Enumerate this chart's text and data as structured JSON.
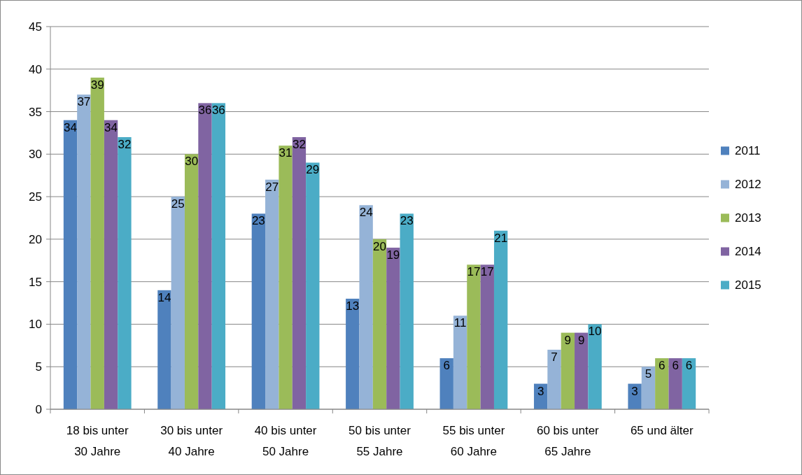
{
  "chart_data": {
    "type": "bar",
    "categories": [
      "18 bis unter 30 Jahre",
      "30 bis unter 40 Jahre",
      "40 bis unter 50 Jahre",
      "50 bis unter 55 Jahre",
      "55 bis unter 60 Jahre",
      "60 bis unter 65 Jahre",
      "65 und älter"
    ],
    "series": [
      {
        "name": "2011",
        "color": "#4f81bd",
        "values": [
          34,
          14,
          23,
          13,
          6,
          3,
          3
        ]
      },
      {
        "name": "2012",
        "color": "#95b3d7",
        "values": [
          37,
          25,
          27,
          24,
          11,
          7,
          5
        ]
      },
      {
        "name": "2013",
        "color": "#9bbb59",
        "values": [
          39,
          30,
          31,
          20,
          17,
          9,
          6
        ]
      },
      {
        "name": "2014",
        "color": "#8064a2",
        "values": [
          34,
          36,
          32,
          19,
          17,
          9,
          6
        ]
      },
      {
        "name": "2015",
        "color": "#4bacc6",
        "values": [
          32,
          36,
          29,
          23,
          21,
          10,
          6
        ]
      }
    ],
    "ylim": [
      0,
      45
    ],
    "yticks": [
      0,
      5,
      10,
      15,
      20,
      25,
      30,
      35,
      40,
      45
    ],
    "grid": "y",
    "legend": "right",
    "data_labels": true
  }
}
